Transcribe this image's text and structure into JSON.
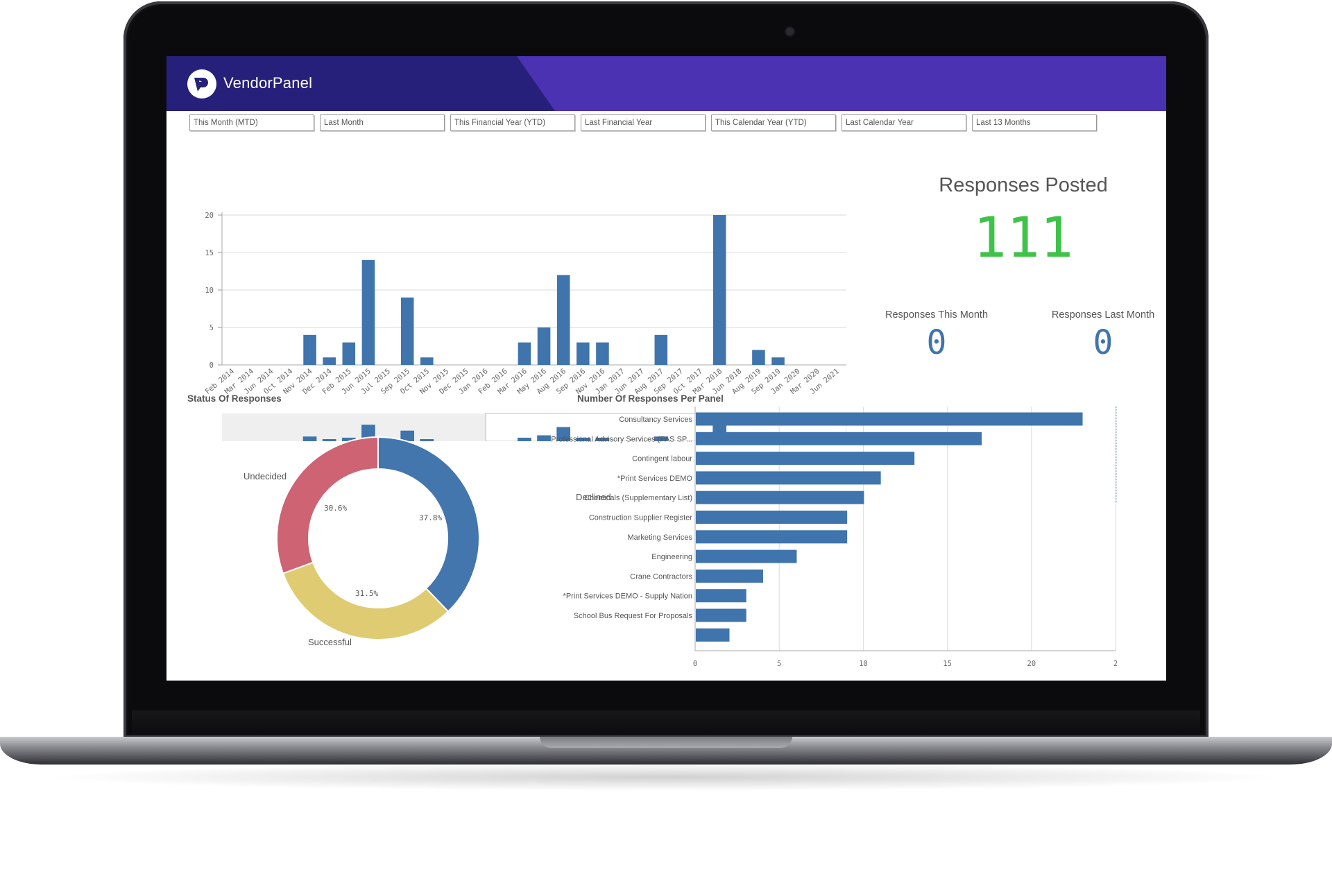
{
  "app": {
    "brand": "VendorPanel"
  },
  "filters": [
    "This Month (MTD)",
    "Last Month",
    "This Financial Year (YTD)",
    "Last Financial Year",
    "This Calendar Year (YTD)",
    "Last Calendar Year",
    "Last 13 Months"
  ],
  "kpi": {
    "title": "Responses Posted",
    "value": "111",
    "this_month_label": "Responses This Month",
    "this_month_value": "0",
    "last_month_label": "Responses Last Month",
    "last_month_value": "0"
  },
  "status_section": {
    "title": "Status Of Responses"
  },
  "panel_section": {
    "title": "Number Of Responses Per Panel"
  },
  "colors": {
    "bar": "#3f74ad",
    "declined": "#4276ad",
    "successful": "#dfcb72",
    "undecided": "#cd6373",
    "kpi_green": "#3fc248",
    "header_dark": "#26207a",
    "header_light": "#4b32b3"
  },
  "chart_data": [
    {
      "type": "bar",
      "title": "",
      "xlabel": "",
      "ylabel": "",
      "ylim": [
        0,
        20
      ],
      "yticks": [
        0,
        5,
        10,
        15,
        20
      ],
      "categories": [
        "Feb 2014",
        "Mar 2014",
        "Jun 2014",
        "Oct 2014",
        "Nov 2014",
        "Dec 2014",
        "Feb 2015",
        "Jun 2015",
        "Jul 2015",
        "Sep 2015",
        "Oct 2015",
        "Nov 2015",
        "Dec 2015",
        "Jan 2016",
        "Feb 2016",
        "Mar 2016",
        "May 2016",
        "Aug 2016",
        "Sep 2016",
        "Nov 2016",
        "Jan 2017",
        "Jun 2017",
        "Aug 2017",
        "Sep 2017",
        "Oct 2017",
        "Mar 2018",
        "Jun 2018",
        "Aug 2019",
        "Sep 2019",
        "Jan 2020",
        "Mar 2020",
        "Jun 2021"
      ],
      "values": [
        0,
        0,
        0,
        0,
        4,
        1,
        3,
        14,
        0,
        9,
        1,
        0,
        0,
        0,
        0,
        3,
        5,
        12,
        3,
        3,
        0,
        0,
        4,
        0,
        0,
        20,
        0,
        2,
        1,
        0,
        0,
        0
      ],
      "grid": true
    },
    {
      "type": "pie",
      "title": "Status Of Responses",
      "categories": [
        "Declined",
        "Successful",
        "Undecided"
      ],
      "values": [
        37.8,
        31.5,
        30.6
      ],
      "value_labels": [
        "37.8%",
        "31.5%",
        "30.6%"
      ]
    },
    {
      "type": "bar",
      "orientation": "horizontal",
      "title": "Number Of Responses Per Panel",
      "categories": [
        "Consultancy Services",
        "Professional Advisory Services (PAS SP...",
        "Contingent labour",
        "*Print Services DEMO",
        "Chemicals (Supplementary List)",
        "Construction Supplier Register",
        "Marketing Services",
        "Engineering",
        "Crane Contractors",
        "*Print Services DEMO - Supply Nation",
        "School Bus Request For Proposals",
        ""
      ],
      "values": [
        23,
        17,
        13,
        11,
        10,
        9,
        9,
        6,
        4,
        3,
        3,
        2
      ],
      "xlim": [
        0,
        25
      ],
      "xticks": [
        "0",
        "5",
        "10",
        "15",
        "20",
        "2"
      ],
      "grid": true
    }
  ]
}
